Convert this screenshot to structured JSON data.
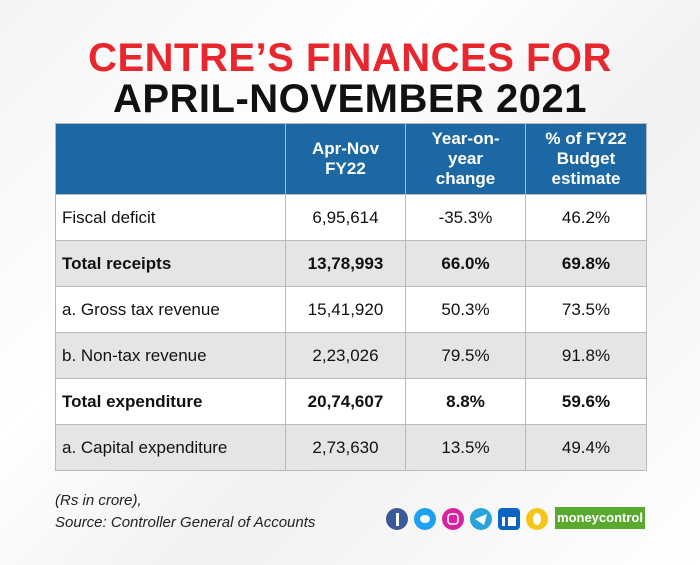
{
  "header": {
    "title_lines": [
      {
        "text": "CENTRE’S FINANCES FOR",
        "color": "#e8262d"
      },
      {
        "text": "APRIL-NOVEMBER 2021",
        "color": "#111111"
      }
    ]
  },
  "table": {
    "columns": [
      "",
      "Apr-Nov FY22",
      "Year-on-year change",
      "% of FY22 Budget estimate"
    ],
    "rows": [
      {
        "cells": [
          "Fiscal deficit",
          "6,95,614",
          "-35.3%",
          "46.2%"
        ],
        "bold": false
      },
      {
        "cells": [
          "Total receipts",
          "13,78,993",
          "66.0%",
          "69.8%"
        ],
        "bold": true
      },
      {
        "cells": [
          "a. Gross tax revenue",
          "15,41,920",
          "50.3%",
          "73.5%"
        ],
        "bold": false
      },
      {
        "cells": [
          "b. Non-tax revenue",
          "2,23,026",
          "79.5%",
          "91.8%"
        ],
        "bold": false
      },
      {
        "cells": [
          "Total expenditure",
          "20,74,607",
          "8.8%",
          "59.6%"
        ],
        "bold": true
      },
      {
        "cells": [
          "a. Capital expenditure",
          "2,73,630",
          "13.5%",
          "49.4%"
        ],
        "bold": false
      }
    ]
  },
  "footer": {
    "notes": [
      "(Rs in crore),",
      "Source: Controller General of Accounts"
    ],
    "logo": "moneycontrol"
  }
}
